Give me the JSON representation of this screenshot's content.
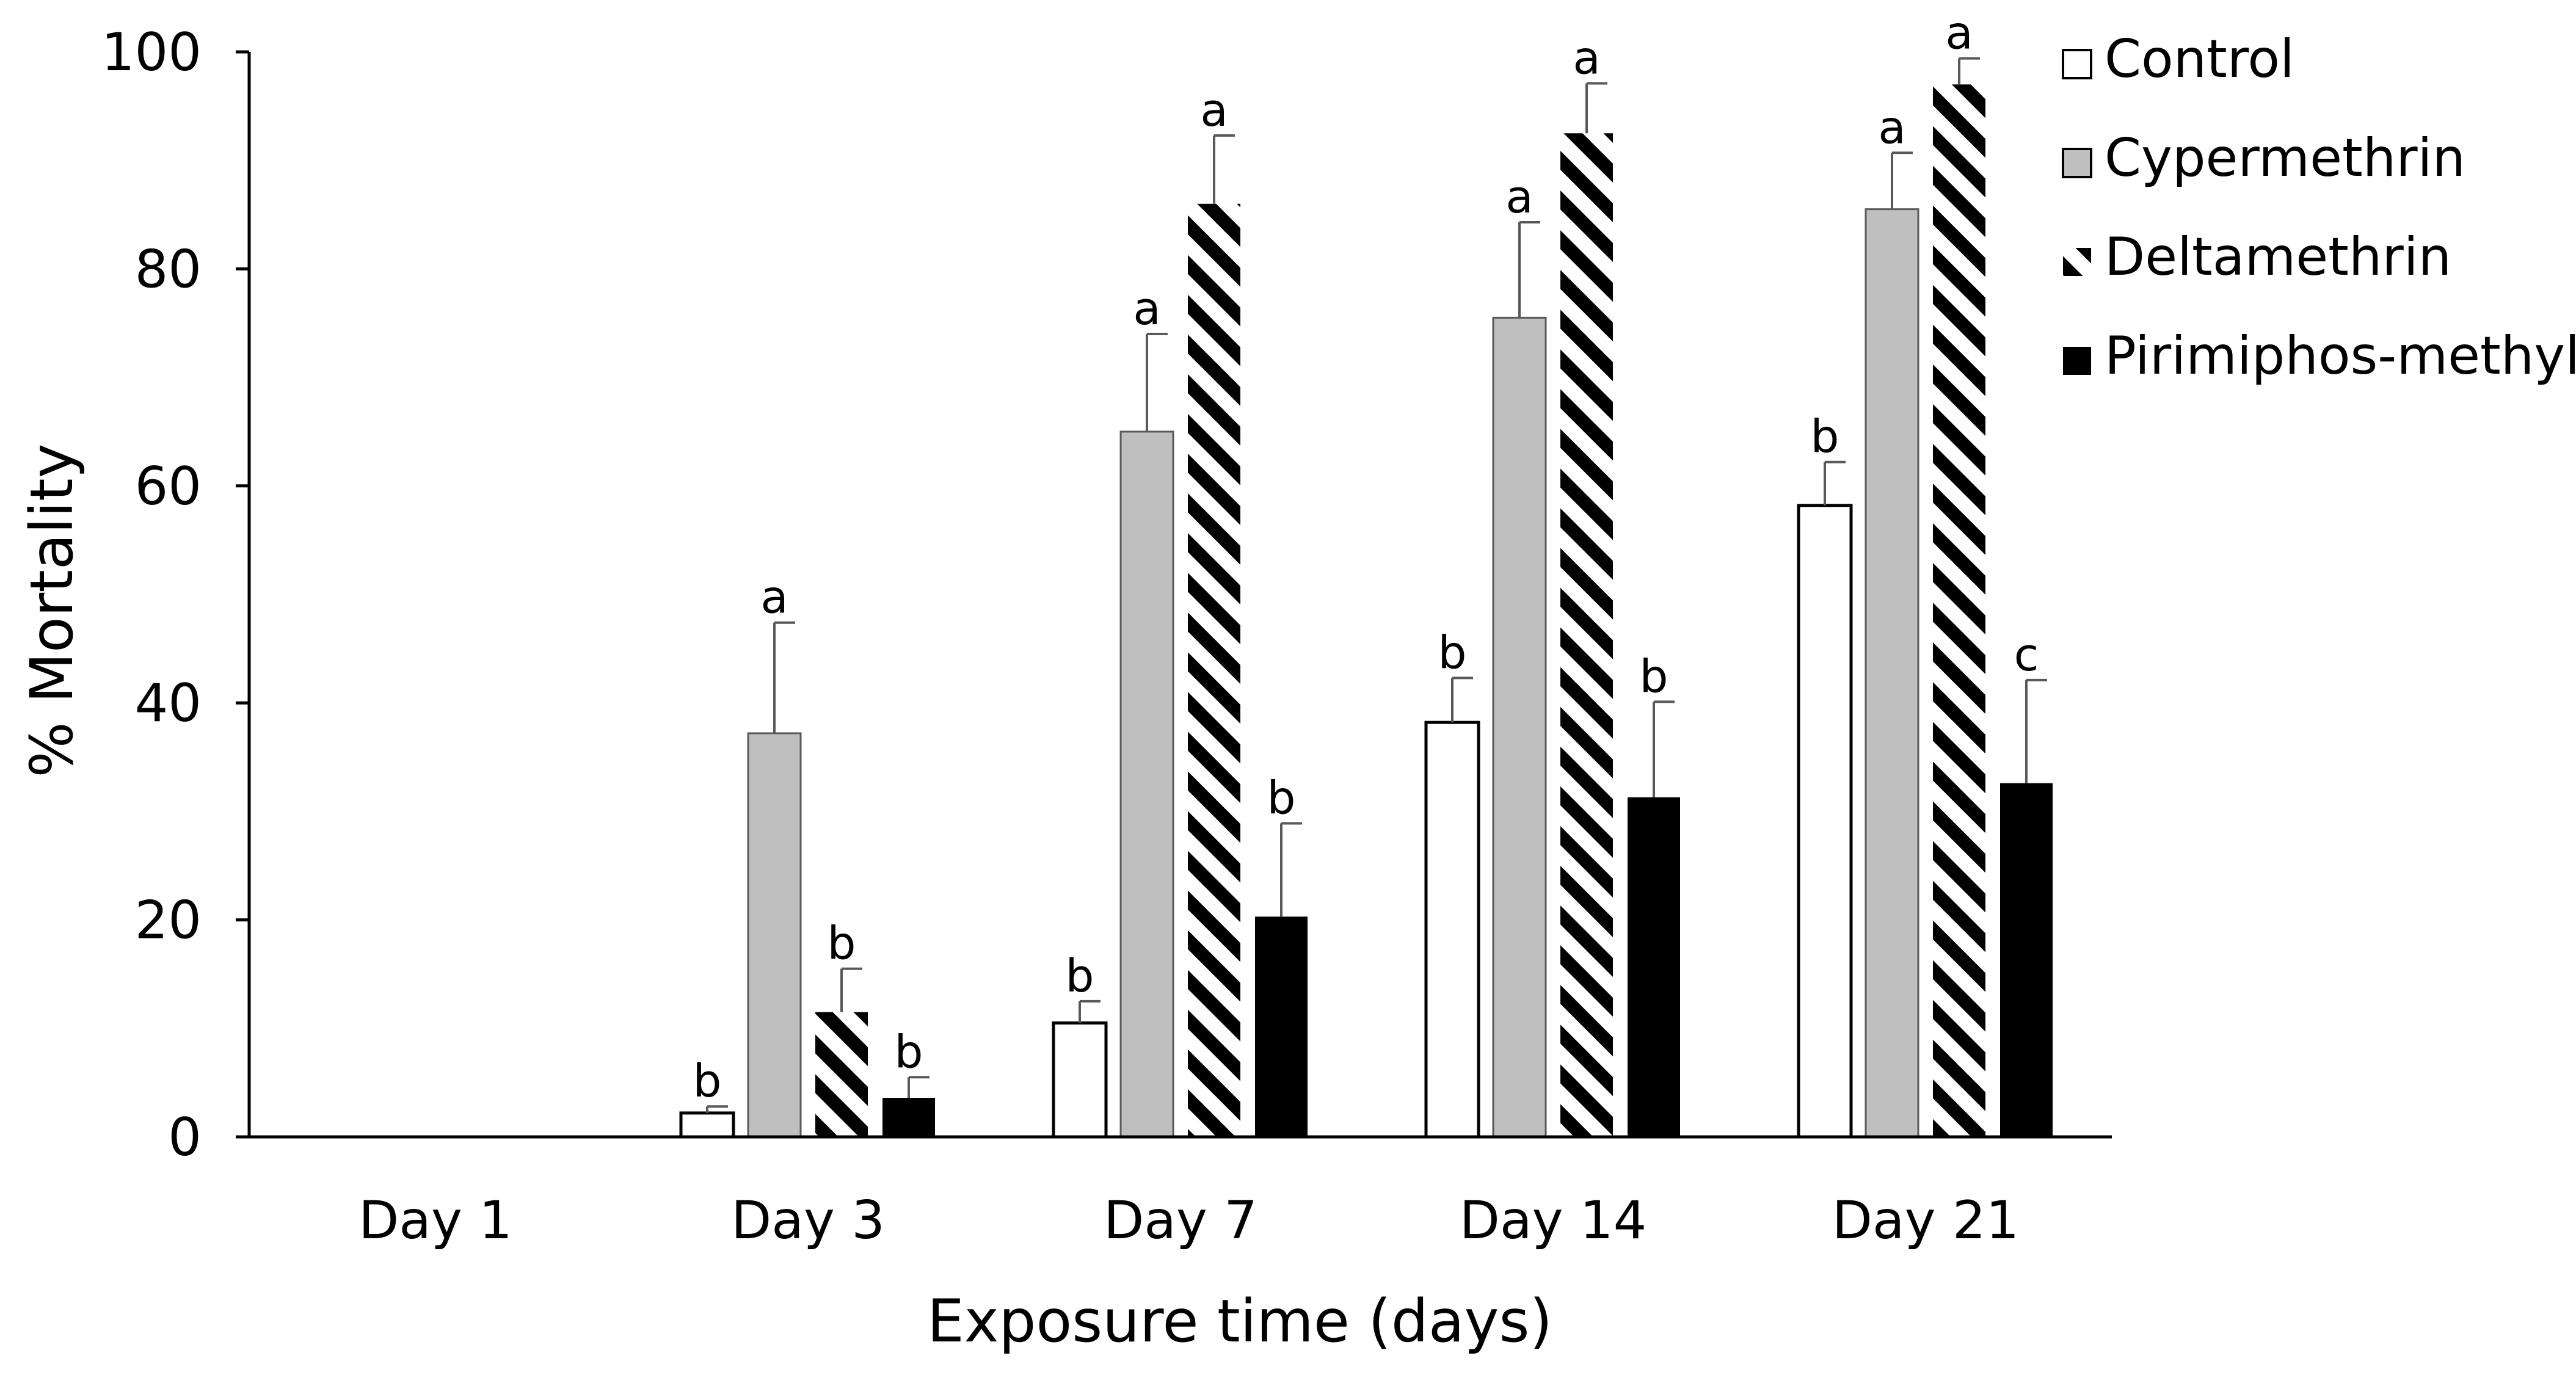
{
  "chart_data": {
    "type": "bar",
    "title": "",
    "xlabel": "Exposure time (days)",
    "ylabel": "% Mortality",
    "ylim": [
      0,
      100
    ],
    "yticks": [
      "0",
      "20",
      "40",
      "60",
      "80",
      "100"
    ],
    "grid": false,
    "legend_position": "top-right",
    "categories": [
      "Day 1",
      "Day 3",
      "Day 7",
      "Day 14",
      "Day 21"
    ],
    "series": [
      {
        "name": "Control",
        "pattern": "empty",
        "values": [
          0,
          2.2,
          10.5,
          38.2,
          58.2
        ],
        "errors": [
          0,
          0.6,
          2,
          4.1,
          4
        ],
        "labels": [
          "",
          "b",
          "b",
          "b",
          "b"
        ]
      },
      {
        "name": "Cypermethrin",
        "pattern": "grey",
        "values": [
          0,
          37.2,
          65,
          75.5,
          85.5
        ],
        "errors": [
          0,
          10.2,
          9,
          8.8,
          5.2
        ],
        "labels": [
          "",
          "a",
          "a",
          "a",
          "a"
        ]
      },
      {
        "name": "Deltamethrin",
        "pattern": "hatch",
        "values": [
          0,
          11.5,
          86,
          92.5,
          97
        ],
        "errors": [
          0,
          4,
          6.3,
          4.6,
          2.4
        ],
        "labels": [
          "",
          "b",
          "a",
          "a",
          "a"
        ]
      },
      {
        "name": "Pirimiphos-methyl",
        "pattern": "black",
        "values": [
          0,
          3.6,
          20.3,
          31.3,
          32.6
        ],
        "errors": [
          0,
          1.9,
          8.6,
          8.8,
          9.5
        ],
        "labels": [
          "",
          "b",
          "b",
          "b",
          "c"
        ]
      }
    ]
  },
  "colors": {
    "control_fill": "#ffffff",
    "cypermethrin_fill": "#bfbfbf",
    "deltamethrin_stripe": "#000000",
    "pirimiphos_fill": "#000000",
    "axis": "#000000",
    "error_bar": "#595959",
    "bar_outline": "#595959"
  }
}
